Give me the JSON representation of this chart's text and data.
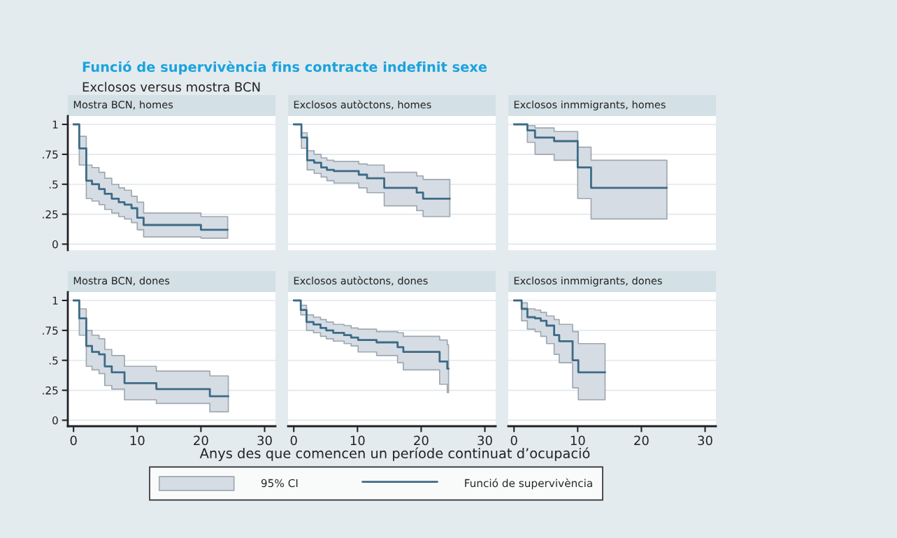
{
  "chart_data": [
    {
      "type": "other",
      "title": "Funció de supervivència fins contracte indefinit sexe",
      "subtitle": "Exclosos versus mostra BCN",
      "annotations": [
        "Anys des que comencen un període continuat d’ocupació"
      ]
    },
    {
      "type": "step",
      "title": "Mostra BCN, homes",
      "xlim": [
        -0.9,
        31.7
      ],
      "ylim": [
        -0.05,
        1.07
      ],
      "xticks": [
        0,
        10,
        20,
        30
      ],
      "yticks": [
        {
          "value": 0,
          "label": "0"
        },
        {
          "value": 0.25,
          "label": ".25"
        },
        {
          "value": 0.5,
          "label": ".5"
        },
        {
          "value": 0.75,
          "label": ".75"
        },
        {
          "value": 1,
          "label": "1"
        }
      ],
      "grid": "y",
      "tick_labels": "y",
      "series": [
        {
          "color": "#3d6a86",
          "x": [
            0,
            0.9,
            2.0,
            2.9,
            4.0,
            4.9,
            6.0,
            7.1,
            8.0,
            9.1,
            10.0,
            11.0,
            20.0,
            24.2
          ],
          "values": [
            1,
            0.8,
            0.53,
            0.5,
            0.46,
            0.42,
            0.38,
            0.35,
            0.33,
            0.3,
            0.22,
            0.16,
            0.12,
            0.12
          ],
          "upper": [
            1,
            0.9,
            0.66,
            0.64,
            0.6,
            0.55,
            0.5,
            0.47,
            0.45,
            0.4,
            0.35,
            0.26,
            0.23,
            0.23
          ],
          "lower": [
            1,
            0.66,
            0.38,
            0.36,
            0.33,
            0.29,
            0.26,
            0.23,
            0.21,
            0.18,
            0.12,
            0.06,
            0.05,
            0.05
          ]
        }
      ]
    },
    {
      "type": "step",
      "title": "Exclosos autòctons, homes",
      "xlim": [
        -0.9,
        31.7
      ],
      "ylim": [
        -0.05,
        1.07
      ],
      "xticks": [
        0,
        10,
        20,
        30
      ],
      "yticks": [
        0,
        0.25,
        0.5,
        0.75,
        1
      ],
      "grid": "y",
      "tick_labels": false,
      "series": [
        {
          "color": "#3d6a86",
          "x": [
            0,
            1.2,
            2.1,
            3.2,
            4.3,
            5.2,
            6.3,
            10.2,
            11.5,
            14.2,
            19.3,
            20.3,
            24.5
          ],
          "values": [
            1,
            0.89,
            0.7,
            0.68,
            0.64,
            0.62,
            0.61,
            0.58,
            0.55,
            0.47,
            0.43,
            0.38,
            0.38
          ],
          "upper": [
            1,
            0.93,
            0.78,
            0.75,
            0.72,
            0.7,
            0.69,
            0.67,
            0.66,
            0.6,
            0.57,
            0.54,
            0.54
          ],
          "lower": [
            1,
            0.8,
            0.62,
            0.59,
            0.56,
            0.53,
            0.51,
            0.47,
            0.43,
            0.32,
            0.28,
            0.23,
            0.23
          ]
        }
      ]
    },
    {
      "type": "step",
      "title": "Exclosos inmmigrants, homes",
      "xlim": [
        -0.9,
        31.7
      ],
      "ylim": [
        -0.05,
        1.07
      ],
      "xticks": [
        0,
        10,
        20,
        30
      ],
      "yticks": [
        0,
        0.25,
        0.5,
        0.75,
        1
      ],
      "grid": "y",
      "tick_labels": false,
      "series": [
        {
          "color": "#3d6a86",
          "x": [
            0,
            2.1,
            3.3,
            6.3,
            10.0,
            12.1,
            24.0
          ],
          "values": [
            1,
            0.95,
            0.89,
            0.86,
            0.64,
            0.47,
            0.47
          ],
          "upper": [
            1,
            0.99,
            0.97,
            0.94,
            0.81,
            0.7,
            0.7
          ],
          "lower": [
            1,
            0.85,
            0.75,
            0.7,
            0.38,
            0.21,
            0.21
          ]
        }
      ]
    },
    {
      "type": "step",
      "title": "Mostra BCN, dones",
      "xlim": [
        -0.9,
        31.7
      ],
      "ylim": [
        -0.05,
        1.07
      ],
      "xticks": [
        0,
        10,
        20,
        30
      ],
      "yticks": [
        {
          "value": 0,
          "label": "0"
        },
        {
          "value": 0.25,
          "label": ".25"
        },
        {
          "value": 0.5,
          "label": ".5"
        },
        {
          "value": 0.75,
          "label": ".75"
        },
        {
          "value": 1,
          "label": "1"
        }
      ],
      "grid": "y",
      "series": [
        {
          "color": "#3d6a86",
          "x": [
            0,
            0.9,
            2.0,
            2.9,
            4.0,
            4.9,
            6.0,
            8.0,
            13.0,
            21.4,
            24.3
          ],
          "values": [
            1,
            0.85,
            0.62,
            0.57,
            0.55,
            0.45,
            0.4,
            0.31,
            0.26,
            0.2,
            0.2
          ],
          "upper": [
            1,
            0.93,
            0.75,
            0.71,
            0.68,
            0.59,
            0.54,
            0.45,
            0.41,
            0.37,
            0.37
          ],
          "lower": [
            1,
            0.71,
            0.45,
            0.42,
            0.39,
            0.29,
            0.26,
            0.17,
            0.14,
            0.07,
            0.07
          ]
        }
      ]
    },
    {
      "type": "step",
      "title": "Exclosos autòctons, dones",
      "xlim": [
        -0.9,
        31.7
      ],
      "ylim": [
        -0.05,
        1.07
      ],
      "xticks": [
        0,
        10,
        20,
        30
      ],
      "yticks": [
        0,
        0.25,
        0.5,
        0.75,
        1
      ],
      "grid": "y",
      "tick_labels": "x",
      "series": [
        {
          "color": "#3d6a86",
          "x": [
            0,
            1.1,
            2.0,
            3.1,
            4.2,
            5.1,
            6.2,
            7.9,
            9.0,
            10.1,
            13.0,
            16.3,
            17.2,
            22.9,
            24.1,
            24.3
          ],
          "values": [
            1,
            0.92,
            0.82,
            0.8,
            0.77,
            0.75,
            0.73,
            0.71,
            0.69,
            0.67,
            0.65,
            0.61,
            0.57,
            0.49,
            0.43,
            0.43
          ],
          "upper": [
            1,
            0.96,
            0.88,
            0.86,
            0.84,
            0.82,
            0.8,
            0.79,
            0.77,
            0.76,
            0.74,
            0.73,
            0.7,
            0.67,
            0.63,
            0.63
          ],
          "lower": [
            1,
            0.88,
            0.75,
            0.73,
            0.7,
            0.68,
            0.66,
            0.64,
            0.62,
            0.57,
            0.54,
            0.48,
            0.42,
            0.3,
            0.23,
            0.23
          ]
        }
      ]
    },
    {
      "type": "step",
      "title": "Exclosos inmmigrants, dones",
      "xlim": [
        -0.9,
        31.7
      ],
      "ylim": [
        -0.05,
        1.07
      ],
      "xticks": [
        0,
        10,
        20,
        30
      ],
      "yticks": [
        0,
        0.25,
        0.5,
        0.75,
        1
      ],
      "grid": "y",
      "tick_labels": "x",
      "legend": "bottom",
      "annotations": [
        "95% CI"
      ],
      "series": [
        {
          "name": "Funció de supervivència",
          "color": "#3d6a86",
          "x": [
            0,
            1.2,
            2.1,
            3.3,
            4.2,
            5.1,
            6.3,
            7.1,
            9.2,
            10.1,
            14.3
          ],
          "values": [
            1,
            0.93,
            0.86,
            0.85,
            0.83,
            0.79,
            0.71,
            0.66,
            0.5,
            0.4,
            0.4
          ],
          "upper": [
            1,
            0.98,
            0.93,
            0.92,
            0.9,
            0.87,
            0.84,
            0.8,
            0.74,
            0.64,
            0.64
          ],
          "lower": [
            1,
            0.83,
            0.76,
            0.74,
            0.7,
            0.64,
            0.55,
            0.48,
            0.27,
            0.17,
            0.17
          ]
        }
      ]
    }
  ]
}
